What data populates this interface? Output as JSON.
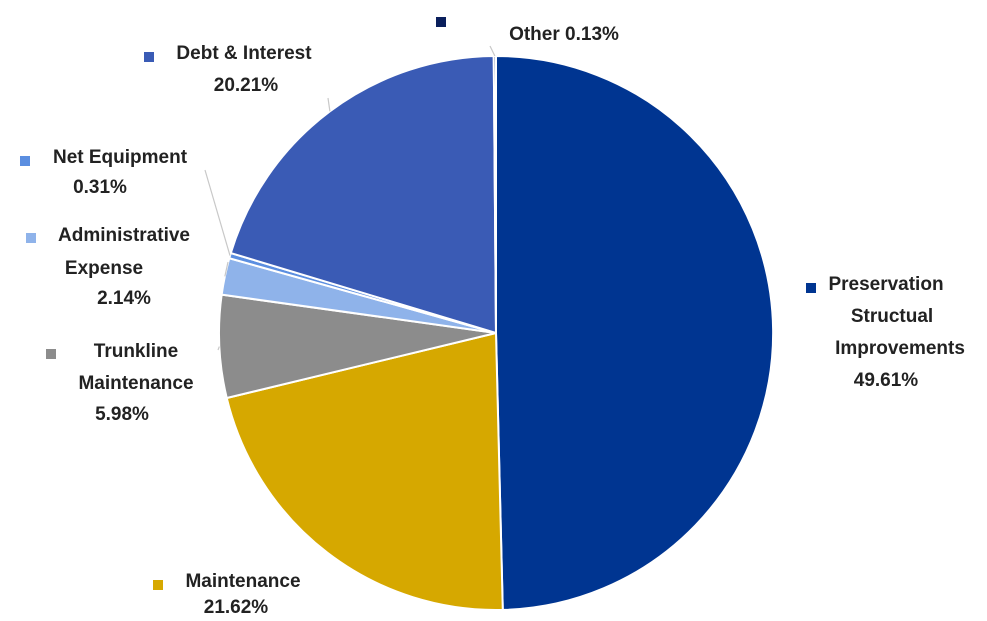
{
  "chart_data": {
    "type": "pie",
    "title": "",
    "slices": [
      {
        "label": "Preservation Structual Improvements",
        "label_lines": [
          "Preservation",
          "Structual",
          "Improvements"
        ],
        "percent_text": "49.61%",
        "value": 49.61,
        "color": "#003591"
      },
      {
        "label": "Maintenance",
        "label_lines": [
          "Maintenance"
        ],
        "percent_text": "21.62%",
        "value": 21.62,
        "color": "#d6a800"
      },
      {
        "label": "Trunkline Maintenance",
        "label_lines": [
          "Trunkline",
          "Maintenance"
        ],
        "percent_text": "5.98%",
        "value": 5.98,
        "color": "#8c8c8c"
      },
      {
        "label": "Administrative Expense",
        "label_lines": [
          "Administrative",
          "Expense"
        ],
        "percent_text": "2.14%",
        "value": 2.14,
        "color": "#8fb3ea"
      },
      {
        "label": "Net Equipment",
        "label_lines": [
          "Net Equipment"
        ],
        "percent_text": "0.31%",
        "value": 0.31,
        "color": "#5b8ee0"
      },
      {
        "label": "Debt & Interest",
        "label_lines": [
          "Debt & Interest"
        ],
        "percent_text": "20.21%",
        "value": 20.21,
        "color": "#3a5bb5"
      },
      {
        "label": "Other",
        "label_lines": [
          "Other  0.13%"
        ],
        "percent_text": "",
        "value": 0.13,
        "color": "#0a1f5c"
      }
    ]
  }
}
